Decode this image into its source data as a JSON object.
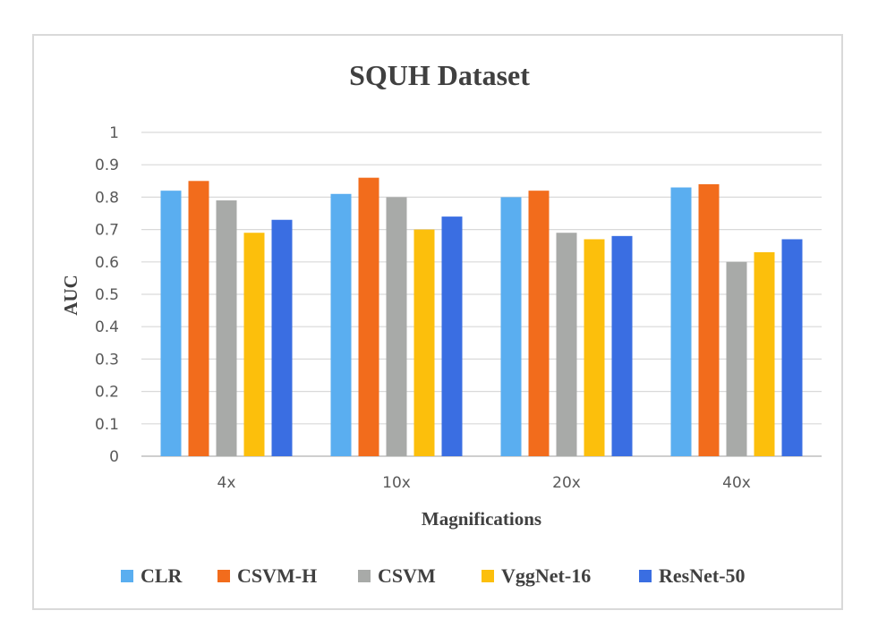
{
  "chart_data": {
    "type": "bar",
    "title": "SQUH Dataset",
    "xlabel": "Magnifications",
    "ylabel": "AUC",
    "categories": [
      "4x",
      "10x",
      "20x",
      "40x"
    ],
    "ylim": [
      0,
      1
    ],
    "yticks": [
      "0",
      "0.1",
      "0.2",
      "0.3",
      "0.4",
      "0.5",
      "0.6",
      "0.7",
      "0.8",
      "0.9",
      "1"
    ],
    "grid": true,
    "legend_position": "bottom",
    "series": [
      {
        "name": "CLR",
        "color": "#5aaef0",
        "values": [
          0.82,
          0.81,
          0.8,
          0.83
        ]
      },
      {
        "name": "CSVM-H",
        "color": "#f26c1c",
        "values": [
          0.85,
          0.86,
          0.82,
          0.84
        ]
      },
      {
        "name": "CSVM",
        "color": "#a8aaa8",
        "values": [
          0.79,
          0.8,
          0.69,
          0.6
        ]
      },
      {
        "name": "VggNet-16",
        "color": "#fcbf0c",
        "values": [
          0.69,
          0.7,
          0.67,
          0.63
        ]
      },
      {
        "name": "ResNet-50",
        "color": "#3a6ee2",
        "values": [
          0.73,
          0.74,
          0.68,
          0.67
        ]
      }
    ]
  }
}
